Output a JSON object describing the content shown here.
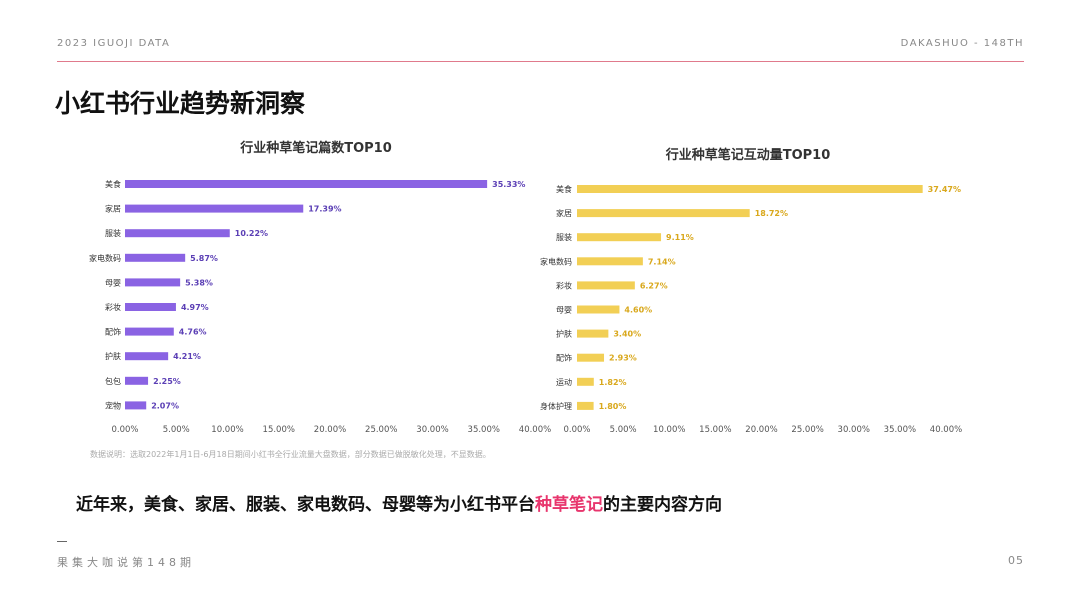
{
  "header": {
    "left": "2023 IGUOJI DATA",
    "right": "DAKASHUO - 148TH"
  },
  "title": "小红书行业趋势新洞察",
  "colors": {
    "purple": "#8a63e3",
    "purple_label": "#5b3fb5",
    "yellow": "#f2cf55",
    "yellow_label": "#d9a81c",
    "highlight": "#e8356d"
  },
  "chart_data": [
    {
      "type": "bar",
      "orientation": "horizontal",
      "title": "行业种草笔记篇数TOP10",
      "categories": [
        "美食",
        "家居",
        "服装",
        "家电数码",
        "母婴",
        "彩妆",
        "配饰",
        "护肤",
        "包包",
        "宠物"
      ],
      "values": [
        35.33,
        17.39,
        10.22,
        5.87,
        5.38,
        4.97,
        4.76,
        4.21,
        2.25,
        2.07
      ],
      "value_labels": [
        "35.33%",
        "17.39%",
        "10.22%",
        "5.87%",
        "5.38%",
        "4.97%",
        "4.76%",
        "4.21%",
        "2.25%",
        "2.07%"
      ],
      "xlim": [
        0,
        40
      ],
      "ticks": [
        "0.00%",
        "5.00%",
        "10.00%",
        "15.00%",
        "20.00%",
        "25.00%",
        "30.00%",
        "35.00%",
        "40.00%"
      ],
      "grid": false
    },
    {
      "type": "bar",
      "orientation": "horizontal",
      "title": "行业种草笔记互动量TOP10",
      "categories": [
        "美食",
        "家居",
        "服装",
        "家电数码",
        "彩妆",
        "母婴",
        "护肤",
        "配饰",
        "运动",
        "身体护理"
      ],
      "values": [
        37.47,
        18.72,
        9.11,
        7.14,
        6.27,
        4.6,
        3.4,
        2.93,
        1.82,
        1.8
      ],
      "value_labels": [
        "37.47%",
        "18.72%",
        "9.11%",
        "7.14%",
        "6.27%",
        "4.60%",
        "3.40%",
        "2.93%",
        "1.82%",
        "1.80%"
      ],
      "xlim": [
        0,
        40
      ],
      "ticks": [
        "0.00%",
        "5.00%",
        "10.00%",
        "15.00%",
        "20.00%",
        "25.00%",
        "30.00%",
        "35.00%",
        "40.00%"
      ],
      "grid": false
    }
  ],
  "note": "数据说明：选取2022年1月1日-6月18日期间小红书全行业流量大盘数据，部分数据已做脱敏化处理，不显数据。",
  "summary": {
    "before": "近年来，美食、家居、服装、家电数码、母婴等为小红书平台",
    "highlight": "种草笔记",
    "after": "的主要内容方向"
  },
  "footer": {
    "left": "果集大咖说第148期",
    "right": "05"
  }
}
